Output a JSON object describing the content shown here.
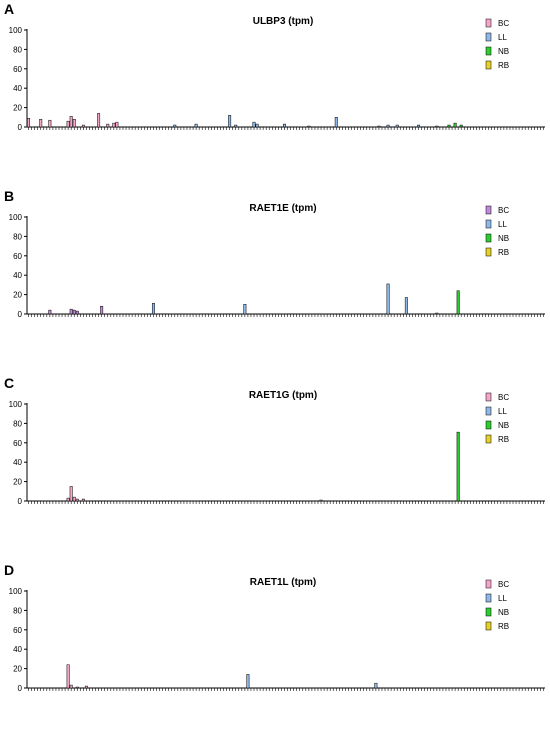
{
  "chart_data": [
    {
      "type": "bar",
      "panel": "A",
      "title": "ULBP3 (tpm)",
      "ylim": [
        0,
        100
      ],
      "yticks": [
        0,
        20,
        40,
        60,
        80,
        100
      ],
      "n_categories": 170,
      "legend": [
        "BC",
        "LL",
        "NB",
        "RB"
      ],
      "series": [
        {
          "name": "BC",
          "color": "#f4a6c8",
          "bars": [
            [
              0,
              9
            ],
            [
              4,
              8
            ],
            [
              7,
              7
            ],
            [
              13,
              6
            ],
            [
              14,
              11
            ],
            [
              15,
              8
            ],
            [
              18,
              2
            ],
            [
              23,
              14
            ],
            [
              26,
              3
            ],
            [
              28,
              4
            ],
            [
              29,
              5
            ]
          ]
        },
        {
          "name": "LL",
          "color": "#8fb8e8",
          "bars": [
            [
              48,
              2
            ],
            [
              55,
              3
            ],
            [
              66,
              12
            ],
            [
              68,
              2
            ],
            [
              74,
              5
            ],
            [
              75,
              3
            ],
            [
              84,
              3
            ],
            [
              92,
              1
            ],
            [
              101,
              10
            ],
            [
              115,
              1
            ],
            [
              118,
              2
            ],
            [
              121,
              2
            ],
            [
              128,
              2
            ],
            [
              134,
              1
            ]
          ]
        },
        {
          "name": "NB",
          "color": "#2ecc2e",
          "bars": [
            [
              138,
              2
            ],
            [
              140,
              4
            ],
            [
              142,
              2
            ]
          ]
        },
        {
          "name": "RB",
          "color": "#e6d12a",
          "bars": []
        }
      ]
    },
    {
      "type": "bar",
      "panel": "B",
      "title": "RAET1E (tpm)",
      "ylim": [
        0,
        100
      ],
      "yticks": [
        0,
        20,
        40,
        60,
        80,
        100
      ],
      "n_categories": 170,
      "legend": [
        "BC",
        "LL",
        "NB",
        "RB"
      ],
      "series": [
        {
          "name": "BC",
          "color": "#c08ad8",
          "bars": [
            [
              7,
              4
            ],
            [
              14,
              5
            ],
            [
              15,
              4
            ],
            [
              16,
              3
            ],
            [
              24,
              8
            ]
          ]
        },
        {
          "name": "LL",
          "color": "#8fb8e8",
          "bars": [
            [
              41,
              11
            ],
            [
              71,
              10
            ],
            [
              118,
              31
            ],
            [
              124,
              17
            ],
            [
              134,
              1
            ]
          ]
        },
        {
          "name": "NB",
          "color": "#2ecc2e",
          "bars": [
            [
              141,
              24
            ]
          ]
        },
        {
          "name": "RB",
          "color": "#e6d12a",
          "bars": []
        }
      ]
    },
    {
      "type": "bar",
      "panel": "C",
      "title": "RAET1G (tpm)",
      "ylim": [
        0,
        100
      ],
      "yticks": [
        0,
        20,
        40,
        60,
        80,
        100
      ],
      "n_categories": 170,
      "legend": [
        "BC",
        "LL",
        "NB",
        "RB"
      ],
      "series": [
        {
          "name": "BC",
          "color": "#f4a6c8",
          "bars": [
            [
              13,
              3
            ],
            [
              14,
              15
            ],
            [
              15,
              4
            ],
            [
              16,
              2
            ],
            [
              18,
              2
            ]
          ]
        },
        {
          "name": "LL",
          "color": "#8fb8e8",
          "bars": [
            [
              96,
              1
            ]
          ]
        },
        {
          "name": "NB",
          "color": "#2ecc2e",
          "bars": [
            [
              141,
              71
            ]
          ]
        },
        {
          "name": "RB",
          "color": "#e6d12a",
          "bars": []
        }
      ]
    },
    {
      "type": "bar",
      "panel": "D",
      "title": "RAET1L (tpm)",
      "ylim": [
        0,
        100
      ],
      "yticks": [
        0,
        20,
        40,
        60,
        80,
        100
      ],
      "n_categories": 170,
      "legend": [
        "BC",
        "LL",
        "NB",
        "RB"
      ],
      "series": [
        {
          "name": "BC",
          "color": "#f4a6c8",
          "bars": [
            [
              13,
              24
            ],
            [
              14,
              3
            ],
            [
              16,
              1
            ],
            [
              19,
              2
            ]
          ]
        },
        {
          "name": "LL",
          "color": "#8fb8e8",
          "bars": [
            [
              72,
              14
            ],
            [
              114,
              5
            ]
          ]
        },
        {
          "name": "NB",
          "color": "#2ecc2e",
          "bars": []
        },
        {
          "name": "RB",
          "color": "#e6d12a",
          "bars": []
        }
      ]
    }
  ]
}
